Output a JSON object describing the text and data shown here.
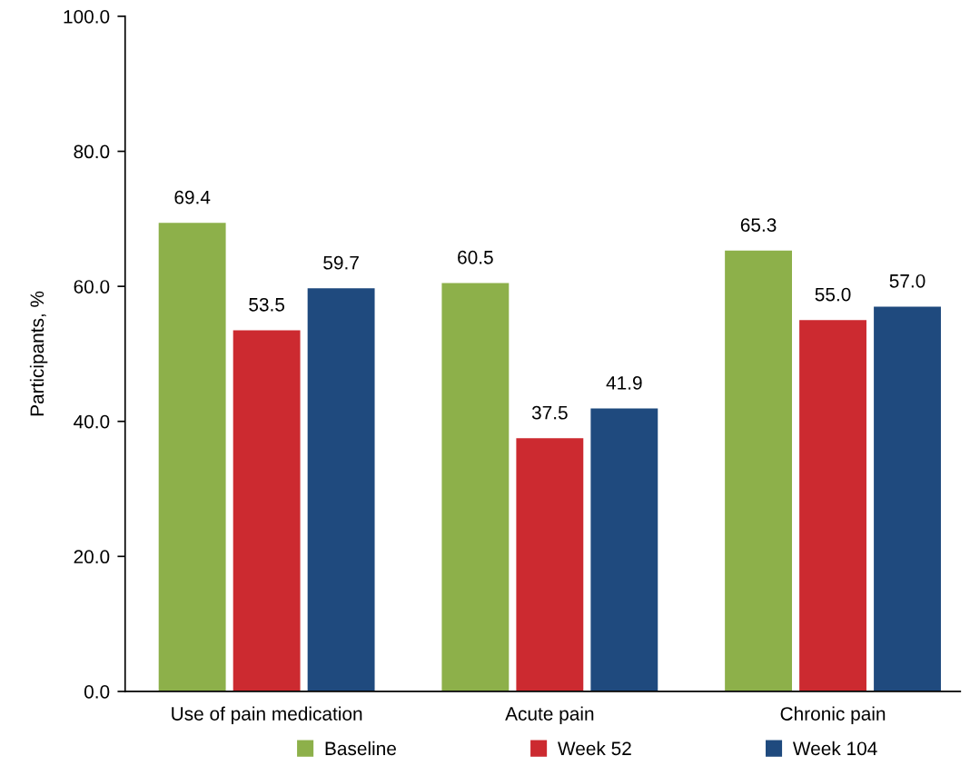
{
  "chart_data": {
    "type": "bar",
    "ylabel": "Participants, %",
    "categories": [
      "Use of pain medication",
      "Acute pain",
      "Chronic pain"
    ],
    "series": [
      {
        "name": "Baseline",
        "color": "#8db04a",
        "values": [
          69.4,
          60.5,
          65.3
        ],
        "value_labels": [
          "69.4",
          "60.5",
          "65.3"
        ]
      },
      {
        "name": "Week 52",
        "color": "#cc2a30",
        "values": [
          53.5,
          37.5,
          55.0
        ],
        "value_labels": [
          "53.5",
          "37.5",
          "55.0"
        ]
      },
      {
        "name": "Week 104",
        "color": "#1f4a7e",
        "values": [
          59.7,
          41.9,
          57.0
        ],
        "value_labels": [
          "59.7",
          "41.9",
          "57.0"
        ]
      }
    ],
    "ylim": [
      0,
      100
    ],
    "yticks": [
      {
        "value": 0,
        "label": "0.0"
      },
      {
        "value": 20,
        "label": "20.0"
      },
      {
        "value": 40,
        "label": "40.0"
      },
      {
        "value": 60,
        "label": "60.0"
      },
      {
        "value": 80,
        "label": "80.0"
      },
      {
        "value": 100,
        "label": "100.0"
      }
    ],
    "grid": false,
    "legend": "bottom"
  }
}
